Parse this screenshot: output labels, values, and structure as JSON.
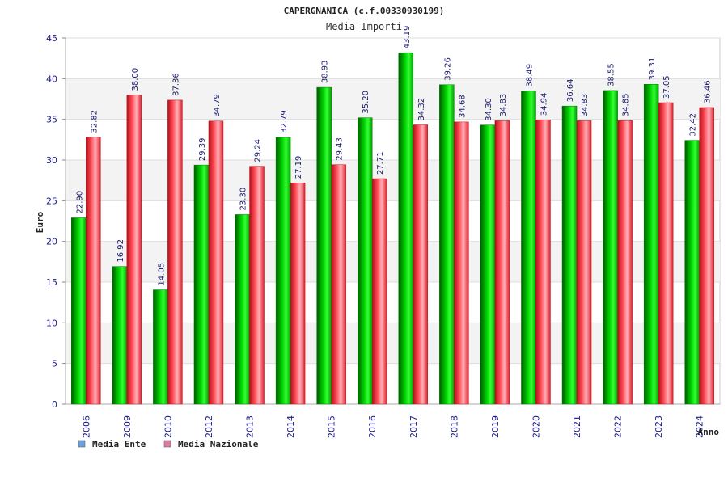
{
  "chart_data": {
    "type": "bar",
    "title": "CAPERGNANICA (c.f.00330930199)",
    "subtitle": "Media Importi",
    "xlabel": "Anno",
    "ylabel": "Euro",
    "ylim": [
      0,
      45
    ],
    "yticks": [
      0,
      5,
      10,
      15,
      20,
      25,
      30,
      35,
      40,
      45
    ],
    "grid": true,
    "legend_position": "bottom-left",
    "categories": [
      "2006",
      "2009",
      "2010",
      "2012",
      "2013",
      "2014",
      "2015",
      "2016",
      "2017",
      "2018",
      "2019",
      "2020",
      "2021",
      "2022",
      "2023",
      "2024"
    ],
    "series": [
      {
        "name": "Media Ente",
        "color": "#00bb00",
        "legend_color": "#66a3e0",
        "values": [
          22.9,
          16.92,
          14.05,
          29.39,
          23.3,
          32.79,
          38.93,
          35.2,
          43.19,
          39.26,
          34.3,
          38.49,
          36.64,
          38.55,
          39.31,
          32.42
        ],
        "labels": [
          "22.90",
          "16.92",
          "14.05",
          "29.39",
          "23.30",
          "32.79",
          "38.93",
          "35.20",
          "43.19",
          "39.26",
          "34.30",
          "38.49",
          "36.64",
          "38.55",
          "39.31",
          "32.42"
        ]
      },
      {
        "name": "Media Nazionale",
        "color": "#e8303a",
        "legend_color": "#e07aa3",
        "values": [
          32.82,
          38.0,
          37.36,
          34.79,
          29.24,
          27.19,
          29.43,
          27.71,
          34.32,
          34.68,
          34.83,
          34.94,
          34.83,
          34.85,
          37.05,
          36.46
        ],
        "labels": [
          "32.82",
          "38.00",
          "37.36",
          "34.79",
          "29.24",
          "27.19",
          "29.43",
          "27.71",
          "34.32",
          "34.68",
          "34.83",
          "34.94",
          "34.83",
          "34.85",
          "37.05",
          "36.46"
        ]
      }
    ]
  }
}
